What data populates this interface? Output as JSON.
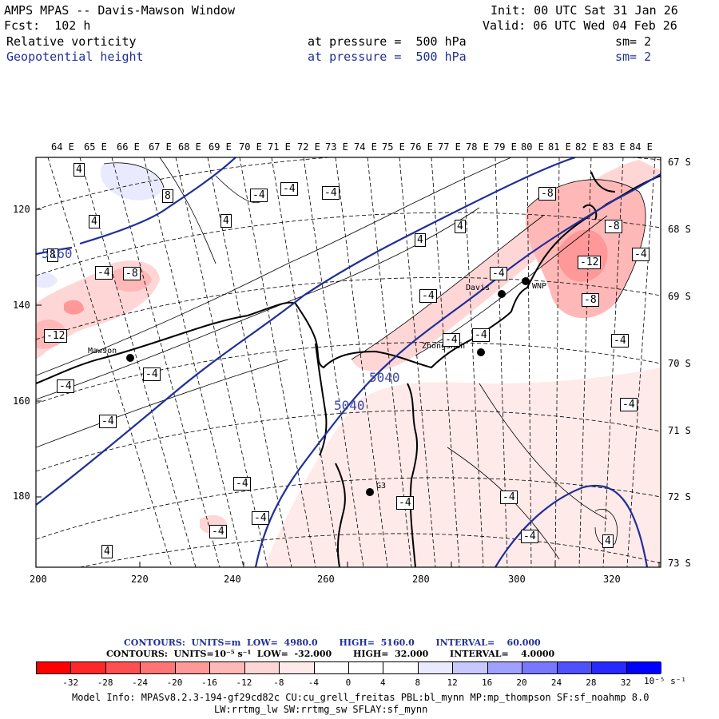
{
  "header": {
    "title": "AMPS MPAS -- Davis-Mawson Window",
    "forecast": "Fcst:  102 h",
    "init": "Init: 00 UTC Sat 31 Jan 26",
    "valid": "Valid: 06 UTC Wed 04 Feb 26",
    "field1": {
      "name": "Relative vorticity",
      "level": "at pressure =  500 hPa",
      "smooth": "sm= 2"
    },
    "field2": {
      "name": "Geopotential height",
      "level": "at pressure =  500 hPa",
      "smooth": "sm= 2"
    }
  },
  "map": {
    "lon_labels": [
      "64 E",
      "65 E",
      "66 E",
      "67 E",
      "68 E",
      "69 E",
      "70 E",
      "71 E",
      "72 E",
      "73 E",
      "74 E",
      "75 E",
      "76 E",
      "77 E",
      "78 E",
      "79 E",
      "80 E",
      "81 E",
      "82 E",
      "83 E",
      "84 E"
    ],
    "lat_labels": [
      "67 S",
      "68 S",
      "69 S",
      "70 S",
      "71 S",
      "72 S",
      "73 S"
    ],
    "x_ticks": [
      "200",
      "220",
      "240",
      "260",
      "280",
      "300",
      "320"
    ],
    "y_ticks": [
      "120",
      "140",
      "160",
      "180"
    ],
    "stations": [
      "Mawson",
      "Davis",
      "WNP",
      "Zhongshan",
      "G3"
    ],
    "vorticity_labels": [
      "4",
      "8",
      "-4",
      "-4",
      "-4",
      "4",
      "4",
      "4",
      "4",
      "-8",
      "-4",
      "-8",
      "-4",
      "-12",
      "-8",
      "-4",
      "-12",
      "-4",
      "-4",
      "-4",
      "-4",
      "-4",
      "-4",
      "-4",
      "-4",
      "-4",
      "-4",
      "-4",
      "-4",
      "-4",
      "-4",
      "4",
      "-8",
      "8",
      "4"
    ],
    "height_labels": [
      "5040",
      "5040",
      "5160"
    ]
  },
  "contours_info": {
    "line1": "CONTOURS:  UNITS=m  LOW=  4980.0       HIGH=  5160.0       INTERVAL=    60.000",
    "line2": "CONTOURS:  UNITS=10⁻⁵ s⁻¹  LOW=  -32.000       HIGH=  32.000       INTERVAL=    4.0000"
  },
  "colorbar": {
    "labels": [
      "-32",
      "-28",
      "-24",
      "-20",
      "-16",
      "-12",
      "-8",
      "-4",
      "0",
      "4",
      "8",
      "12",
      "16",
      "20",
      "24",
      "28",
      "32"
    ],
    "unit": "10⁻⁵ s⁻¹",
    "colors": [
      "#ff0000",
      "#ff2828",
      "#ff5050",
      "#ff7474",
      "#ff9898",
      "#ffb8b8",
      "#ffd6d6",
      "#ffeaea",
      "#ffffff",
      "#ffffff",
      "#eaeaff",
      "#c8c8ff",
      "#a0a0ff",
      "#7878ff",
      "#5050ff",
      "#2828ff",
      "#0000ff"
    ]
  },
  "footer": {
    "line1": "Model Info: MPASv8.2.3-194-gf29cd82c CU:cu_grell_freitas PBL:bl_mynn MP:mp_thompson SF:sf_noahmp 8.0",
    "line2": "LW:rrtmg_lw SW:rrtmg_sw SFLAY:sf_mynn"
  }
}
